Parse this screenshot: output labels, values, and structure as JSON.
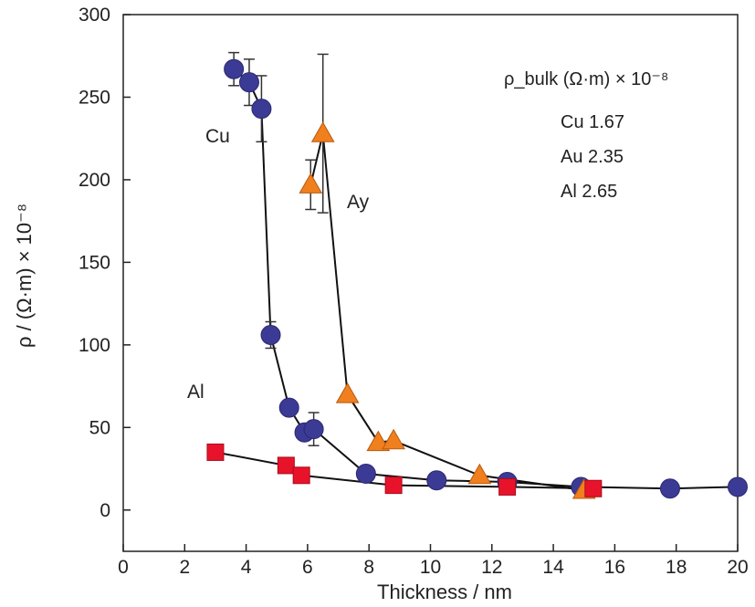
{
  "chart_data": {
    "type": "scatter",
    "title": "",
    "xlabel": "Thickness / nm",
    "ylabel": "ρ / (Ω·m) × 10⁻⁸",
    "xlim": [
      0,
      20
    ],
    "ylim": [
      -25,
      300
    ],
    "x_ticks": [
      0,
      2,
      4,
      6,
      8,
      10,
      12,
      14,
      16,
      18,
      20
    ],
    "y_ticks": [
      0,
      50,
      100,
      150,
      200,
      250,
      300
    ],
    "grid": false,
    "series": [
      {
        "name": "Cu",
        "marker": "circle",
        "color": "#3b3a94",
        "x": [
          3.6,
          4.1,
          4.5,
          4.8,
          5.4,
          5.9,
          6.2,
          7.9,
          10.2,
          12.5,
          14.9,
          17.8,
          20.0
        ],
        "y": [
          267,
          259,
          243,
          106,
          62,
          47,
          49,
          22,
          18,
          17,
          14,
          13,
          14
        ],
        "error": [
          10,
          14,
          20,
          8,
          0,
          0,
          10,
          0,
          0,
          0,
          0,
          0,
          0
        ]
      },
      {
        "name": "Ay",
        "marker": "triangle",
        "color": "#f07f1e",
        "x": [
          6.1,
          6.5,
          7.3,
          8.3,
          8.8,
          11.6,
          15.0
        ],
        "y": [
          197,
          228,
          70,
          41,
          42,
          21,
          12
        ],
        "error": [
          15,
          48,
          0,
          0,
          0,
          0,
          0
        ]
      },
      {
        "name": "Al",
        "marker": "square",
        "color": "#e8132a",
        "x": [
          3.0,
          5.3,
          5.8,
          8.8,
          12.5,
          15.3
        ],
        "y": [
          35,
          27,
          21,
          15,
          14,
          13
        ],
        "error": [
          0,
          0,
          0,
          0,
          0,
          0
        ]
      }
    ],
    "annotations": {
      "legend_title": "ρ_bulk (Ω·m) × 10⁻⁸",
      "reference_values": [
        "Cu 1.67",
        "Au 2.35",
        "Al 2.65"
      ]
    }
  }
}
